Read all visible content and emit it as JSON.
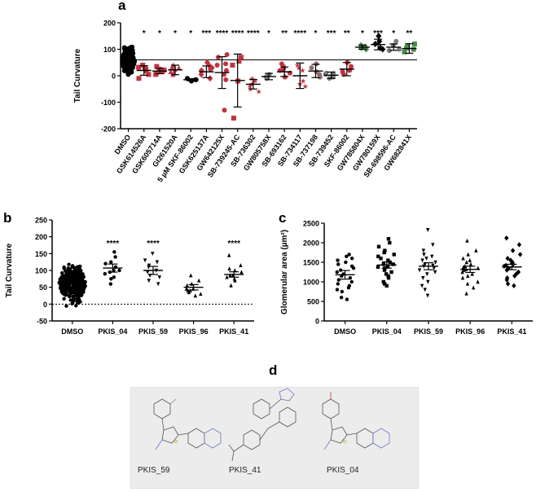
{
  "panels": {
    "a": "a",
    "b": "b",
    "c": "c",
    "d": "d"
  },
  "chart_data": [
    {
      "id": "a",
      "type": "scatter",
      "title": "",
      "xlabel": "",
      "ylabel": "Tail Curvature",
      "ylim": [
        -200,
        200
      ],
      "yticks": [
        -200,
        -100,
        0,
        100,
        200
      ],
      "reference_line": 60,
      "categories": [
        "DMSO",
        "GSK614526A",
        "GSK605714A",
        "GI261520A",
        "5 µM SKF-86002",
        "GSK625137A",
        "GW642125X",
        "SB-739245-AC",
        "SB-736302",
        "GW805758X",
        "SB-693162",
        "SB-734117",
        "SB-737198",
        "SB-739452",
        "SKF-86002",
        "GW785804X",
        "GW780159X",
        "SB-698596-AC",
        "GW682841X"
      ],
      "significance": [
        "",
        "*",
        "*",
        "*",
        "*",
        "***",
        "****",
        "****",
        "****",
        "*",
        "**",
        "****",
        "*",
        "***",
        "**",
        "*",
        "***",
        "*",
        "**"
      ],
      "means": [
        60,
        20,
        18,
        22,
        -15,
        15,
        12,
        -18,
        -32,
        -3,
        15,
        0,
        18,
        2,
        25,
        108,
        118,
        108,
        103
      ],
      "errors": [
        5,
        18,
        10,
        18,
        4,
        22,
        60,
        100,
        18,
        12,
        18,
        48,
        25,
        12,
        25,
        8,
        20,
        12,
        18
      ],
      "colors": [
        "#000000",
        "#c0343f",
        "#c0343f",
        "#c0343f",
        "#000000",
        "#c0343f",
        "#c0343f",
        "#c0343f",
        "#c0343f",
        "#7d7d7d",
        "#c0343f",
        "#c0343f",
        "#8d6e6e",
        "#7d7d7d",
        "#c0343f",
        "#4b8a4b",
        "#000000",
        "#7d7d7d",
        "#4b8a4b"
      ],
      "points": [
        [],
        [
          30,
          25,
          -10,
          40,
          5,
          32,
          28,
          18
        ],
        [
          25,
          15,
          10,
          35,
          20,
          5,
          22
        ],
        [
          40,
          30,
          10,
          15,
          25,
          5,
          32
        ],
        [
          -10,
          -15,
          -20,
          -15
        ],
        [
          20,
          30,
          40,
          -10,
          5,
          50,
          25
        ],
        [
          80,
          40,
          20,
          5,
          -15,
          -130,
          70,
          45
        ],
        [
          70,
          -160,
          40,
          -20,
          55
        ],
        [
          -20,
          -50,
          -40,
          -30,
          -10,
          -60
        ],
        [
          5,
          -10,
          0,
          -5
        ],
        [
          25,
          35,
          -5,
          20,
          10,
          45,
          30
        ],
        [
          40,
          -30,
          20,
          -40,
          -20,
          30
        ],
        [
          30,
          15,
          -5,
          5,
          45
        ],
        [
          5,
          -5,
          10,
          0,
          -10,
          8
        ],
        [
          35,
          20,
          5,
          50,
          15
        ],
        [
          110,
          100,
          115,
          105
        ],
        [
          130,
          100,
          150,
          120,
          105
        ],
        [
          115,
          100,
          130,
          95
        ],
        [
          110,
          90,
          100,
          120,
          105
        ]
      ],
      "dmso_range": [
        -10,
        130
      ]
    },
    {
      "id": "b",
      "type": "scatter",
      "ylabel": "Tail Curvature",
      "ylim": [
        -50,
        250
      ],
      "yticks": [
        -50,
        0,
        50,
        100,
        150,
        200,
        250
      ],
      "categories": [
        "DMSO",
        "PKIS_04",
        "PKIS_59",
        "PKIS_96",
        "PKIS_41"
      ],
      "significance": [
        "",
        "****",
        "****",
        "",
        "****"
      ],
      "means": [
        62,
        107,
        100,
        50,
        88
      ],
      "errors": [
        3,
        12,
        12,
        8,
        8
      ],
      "points": [
        [],
        [
          155,
          140,
          120,
          125,
          100,
          90,
          80,
          110,
          95,
          100,
          75,
          60
        ],
        [
          150,
          125,
          110,
          115,
          100,
          95,
          80,
          85,
          70,
          60,
          130
        ],
        [
          85,
          70,
          60,
          55,
          45,
          40,
          35,
          30,
          40,
          45,
          25
        ],
        [
          145,
          115,
          100,
          95,
          85,
          85,
          75,
          70,
          80,
          55,
          105
        ]
      ],
      "dmso_range": [
        -15,
        135
      ]
    },
    {
      "id": "c",
      "type": "scatter",
      "ylabel": "Glomerular area (µm²)",
      "ylim": [
        0,
        2500
      ],
      "yticks": [
        0,
        500,
        1000,
        1500,
        2000,
        2500
      ],
      "categories": [
        "DMSO",
        "PKIS_04",
        "PKIS_59",
        "PKIS_96",
        "PKIS_41"
      ],
      "means": [
        1180,
        1430,
        1400,
        1320,
        1380
      ],
      "errors": [
        110,
        80,
        90,
        80,
        70
      ],
      "points": [
        [
          1700,
          1650,
          1600,
          1500,
          1450,
          1400,
          1300,
          1250,
          1200,
          1150,
          1100,
          1000,
          950,
          900,
          850,
          800,
          750,
          600,
          550,
          1350,
          1550,
          1050
        ],
        [
          2100,
          2000,
          1900,
          1800,
          1700,
          1650,
          1550,
          1500,
          1450,
          1400,
          1350,
          1300,
          1250,
          1200,
          1150,
          1100,
          1000,
          950,
          900,
          1750,
          1600,
          1450,
          1380
        ],
        [
          2330,
          1950,
          1800,
          1700,
          1650,
          1550,
          1500,
          1450,
          1400,
          1350,
          1300,
          1250,
          1200,
          1100,
          1000,
          900,
          800,
          650,
          1600,
          1420
        ],
        [
          2050,
          1800,
          1700,
          1600,
          1550,
          1500,
          1400,
          1350,
          1300,
          1250,
          1200,
          1150,
          1100,
          1000,
          950,
          850,
          700,
          1450,
          1320,
          1380
        ],
        [
          2120,
          1950,
          1800,
          1700,
          1600,
          1550,
          1500,
          1450,
          1400,
          1350,
          1300,
          1250,
          1200,
          1150,
          1100,
          1050,
          950,
          900,
          1420,
          1480
        ]
      ]
    }
  ],
  "structures": {
    "labels": [
      "PKIS_59",
      "PKIS_41",
      "PKIS_04"
    ]
  }
}
